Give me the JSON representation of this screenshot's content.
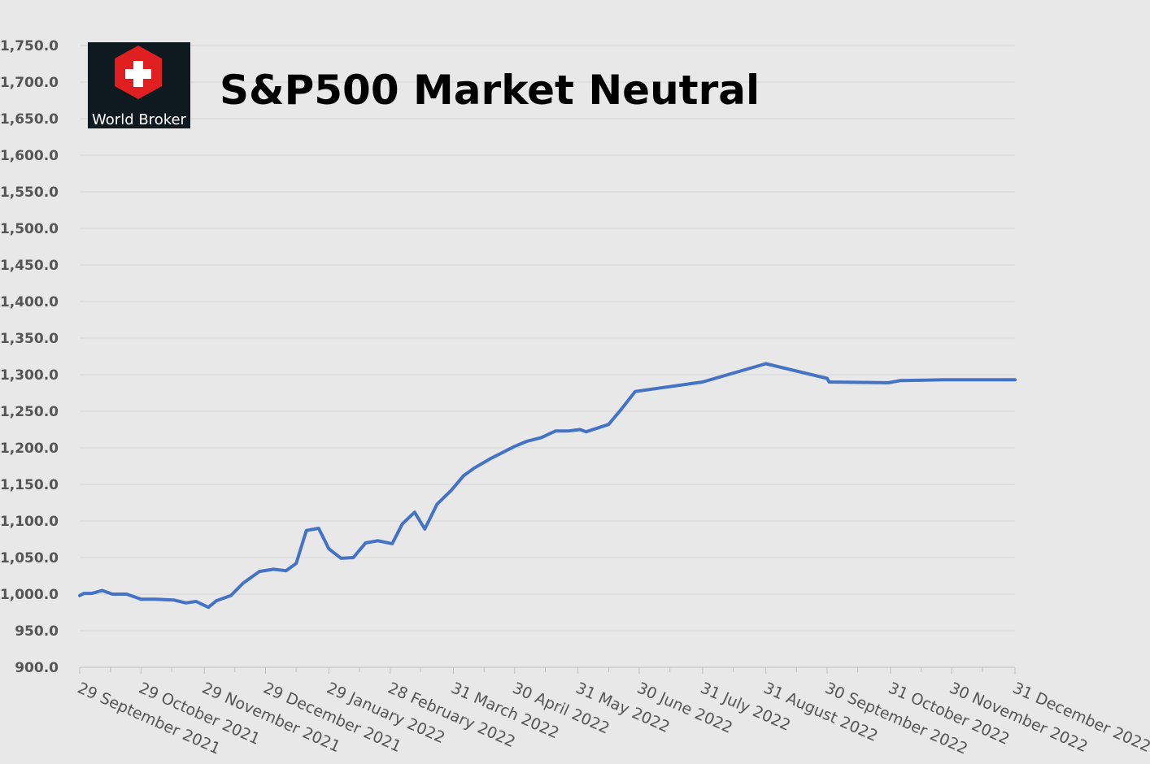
{
  "colors": {
    "background": "#e8e8e8",
    "line": "#4472c4",
    "grid": "#d6d6d6",
    "logo_bg": "#0f1a20",
    "logo_red": "#e02020"
  },
  "logo": {
    "text": "World Broker",
    "icon": "swiss-cross-hexagon-icon"
  },
  "chart_data": {
    "type": "line",
    "title": "S&P500 Market Neutral",
    "xlabel": "",
    "ylabel": "",
    "grid": true,
    "legend": "none",
    "ylim": [
      900,
      1750
    ],
    "xlim": [
      "2021-09-29",
      "2022-12-31"
    ],
    "y_ticks": [
      "900.0",
      "950.0",
      "1,000.0",
      "1,050.0",
      "1,100.0",
      "1,150.0",
      "1,200.0",
      "1,250.0",
      "1,300.0",
      "1,350.0",
      "1,400.0",
      "1,450.0",
      "1,500.0",
      "1,550.0",
      "1,600.0",
      "1,650.0",
      "1,700.0",
      "1,750.0"
    ],
    "y_tick_values": [
      900,
      950,
      1000,
      1050,
      1100,
      1150,
      1200,
      1250,
      1300,
      1350,
      1400,
      1450,
      1500,
      1550,
      1600,
      1650,
      1700,
      1750
    ],
    "x_ticks": [
      "29 September 2021",
      "29 October 2021",
      "29 November 2021",
      "29 December 2021",
      "29 January 2022",
      "28 February 2022",
      "31 March 2022",
      "30 April 2022",
      "31 May 2022",
      "30 June 2022",
      "31 July 2022",
      "31 August 2022",
      "30 September 2022",
      "31 October 2022",
      "30 November 2022",
      "31 December 2022"
    ],
    "x_tick_dates": [
      "2021-09-29",
      "2021-10-29",
      "2021-11-29",
      "2021-12-29",
      "2022-01-29",
      "2022-02-28",
      "2022-03-31",
      "2022-04-30",
      "2022-05-31",
      "2022-06-30",
      "2022-07-31",
      "2022-08-31",
      "2022-09-30",
      "2022-10-31",
      "2022-11-30",
      "2022-12-31"
    ],
    "series": [
      {
        "x": [
          "2021-09-29",
          "2021-10-01",
          "2021-10-05",
          "2021-10-10",
          "2021-10-15",
          "2021-10-22",
          "2021-10-29",
          "2021-11-05",
          "2021-11-14",
          "2021-11-20",
          "2021-11-25",
          "2021-12-01",
          "2021-12-05",
          "2021-12-12",
          "2021-12-18",
          "2021-12-26",
          "2022-01-02",
          "2022-01-08",
          "2022-01-13",
          "2022-01-18",
          "2022-01-24",
          "2022-01-29",
          "2022-02-04",
          "2022-02-10",
          "2022-02-16",
          "2022-02-22",
          "2022-03-01",
          "2022-03-06",
          "2022-03-12",
          "2022-03-17",
          "2022-03-23",
          "2022-03-30",
          "2022-04-05",
          "2022-04-10",
          "2022-04-18",
          "2022-04-30",
          "2022-05-06",
          "2022-05-13",
          "2022-05-20",
          "2022-05-26",
          "2022-06-01",
          "2022-06-04",
          "2022-06-15",
          "2022-06-21",
          "2022-06-28",
          "2022-07-31",
          "2022-08-31",
          "2022-09-30",
          "2022-10-01",
          "2022-10-30",
          "2022-11-05",
          "2022-11-26",
          "2022-12-31"
        ],
        "values": [
          998,
          1001,
          1001,
          1005,
          1000,
          1000,
          993,
          993,
          992,
          988,
          990,
          982,
          991,
          998,
          1015,
          1031,
          1034,
          1032,
          1042,
          1087,
          1090,
          1062,
          1049,
          1050,
          1070,
          1073,
          1069,
          1096,
          1112,
          1089,
          1123,
          1142,
          1162,
          1172,
          1185,
          1202,
          1209,
          1214,
          1223,
          1223,
          1225,
          1222,
          1232,
          1252,
          1277,
          1290,
          1315,
          1295,
          1290,
          1289,
          1292,
          1293,
          1293
        ]
      }
    ]
  }
}
